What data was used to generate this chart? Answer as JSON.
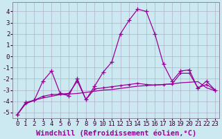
{
  "background_color": "#cce8f0",
  "grid_color": "#b0b0cc",
  "line_color": "#990099",
  "xlabel": "Windchill (Refroidissement éolien,°C)",
  "xlim": [
    -0.5,
    23.5
  ],
  "ylim": [
    -5.5,
    4.8
  ],
  "yticks": [
    -5,
    -4,
    -3,
    -2,
    -1,
    0,
    1,
    2,
    3,
    4
  ],
  "xticks": [
    0,
    1,
    2,
    3,
    4,
    5,
    6,
    7,
    8,
    9,
    10,
    11,
    12,
    13,
    14,
    15,
    16,
    17,
    18,
    19,
    20,
    21,
    22,
    23
  ],
  "smooth_x": [
    0,
    1,
    2,
    3,
    4,
    5,
    6,
    7,
    8,
    9,
    10,
    11,
    12,
    13,
    14,
    15,
    16,
    17,
    18,
    19,
    20,
    21,
    22,
    23
  ],
  "smooth_y": [
    -5.2,
    -4.2,
    -3.9,
    -3.7,
    -3.55,
    -3.4,
    -3.35,
    -3.3,
    -3.2,
    -3.1,
    -3.0,
    -2.95,
    -2.85,
    -2.75,
    -2.65,
    -2.6,
    -2.55,
    -2.5,
    -2.45,
    -2.35,
    -2.3,
    -2.25,
    -2.8,
    -3.05
  ],
  "jagged_x": [
    0,
    1,
    2,
    3,
    4,
    5,
    6,
    7,
    8,
    9,
    10,
    11,
    12,
    13,
    14,
    15,
    16,
    17,
    18,
    19,
    20,
    21,
    22,
    23
  ],
  "jagged_y": [
    -5.2,
    -4.1,
    -3.9,
    -2.2,
    -1.3,
    -3.3,
    -3.5,
    -2.0,
    -3.85,
    -2.65,
    -1.4,
    -0.5,
    2.0,
    3.2,
    4.2,
    4.0,
    2.0,
    -0.7,
    -2.2,
    -1.3,
    -1.2,
    -2.85,
    -2.2,
    -3.0
  ],
  "smooth2_x": [
    0,
    1,
    2,
    3,
    4,
    5,
    6,
    7,
    8,
    9,
    10,
    11,
    12,
    13,
    14,
    15,
    16,
    17,
    18,
    19,
    20,
    21,
    22,
    23
  ],
  "smooth2_y": [
    -5.2,
    -4.2,
    -3.9,
    -3.55,
    -3.4,
    -3.35,
    -3.3,
    -2.2,
    -3.85,
    -2.9,
    -2.8,
    -2.7,
    -2.6,
    -2.5,
    -2.4,
    -2.5,
    -2.55,
    -2.5,
    -2.45,
    -1.5,
    -1.5,
    -2.8,
    -2.5,
    -3.0
  ],
  "xlabel_fontsize": 7.5,
  "tick_fontsize": 6.5
}
